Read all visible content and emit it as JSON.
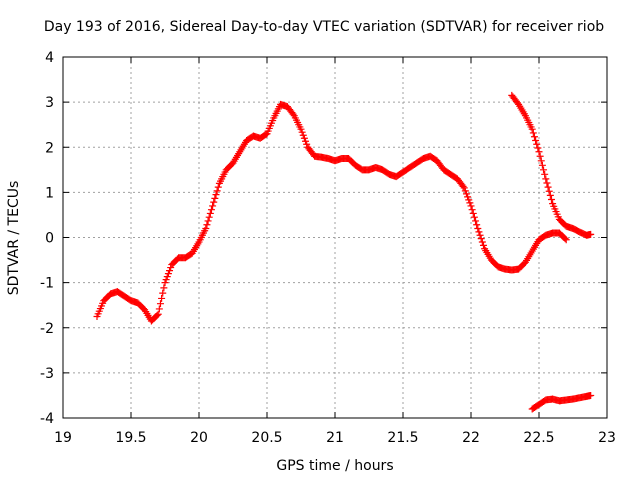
{
  "chart_data": {
    "type": "scatter",
    "title": "Day 193 of 2016, Sidereal Day-to-day VTEC variation (SDTVAR) for receiver riob",
    "xlabel": "GPS time / hours",
    "ylabel": "SDTVAR / TECUs",
    "xlim": [
      19,
      23
    ],
    "ylim": [
      -4,
      4
    ],
    "grid": true,
    "legend": "none",
    "marker": "plus",
    "color": "#ff0000",
    "x_ticks": [
      19,
      19.5,
      20,
      20.5,
      21,
      21.5,
      22,
      22.5,
      23
    ],
    "x_tick_labels": [
      "19",
      "19.5",
      "20",
      "20.5",
      "21",
      "21.5",
      "22",
      "22.5",
      "23"
    ],
    "y_ticks": [
      -4,
      -3,
      -2,
      -1,
      0,
      1,
      2,
      3,
      4
    ],
    "y_tick_labels": [
      "-4",
      "-3",
      "-2",
      "-1",
      "0",
      "1",
      "2",
      "3",
      "4"
    ],
    "series": [
      {
        "name": "main-arc",
        "x": [
          19.25,
          19.3,
          19.35,
          19.4,
          19.45,
          19.5,
          19.55,
          19.6,
          19.65,
          19.7,
          19.75,
          19.8,
          19.85,
          19.9,
          19.95,
          20.0,
          20.05,
          20.1,
          20.15,
          20.2,
          20.25,
          20.3,
          20.35,
          20.4,
          20.45,
          20.5,
          20.55,
          20.6,
          20.65,
          20.7,
          20.75,
          20.8,
          20.85,
          20.9,
          20.95,
          21.0,
          21.05,
          21.1,
          21.15,
          21.2,
          21.25,
          21.3,
          21.35,
          21.4,
          21.45,
          21.5,
          21.55,
          21.6,
          21.65,
          21.7,
          21.75,
          21.8,
          21.85,
          21.9,
          21.95,
          22.0,
          22.05,
          22.1,
          22.15,
          22.2,
          22.25,
          22.3,
          22.35,
          22.4,
          22.45,
          22.5,
          22.55,
          22.6,
          22.65,
          22.7
        ],
        "y": [
          -1.75,
          -1.4,
          -1.25,
          -1.2,
          -1.3,
          -1.4,
          -1.45,
          -1.6,
          -1.85,
          -1.7,
          -1.0,
          -0.6,
          -0.45,
          -0.45,
          -0.35,
          -0.1,
          0.2,
          0.7,
          1.2,
          1.5,
          1.65,
          1.9,
          2.15,
          2.25,
          2.2,
          2.3,
          2.65,
          2.95,
          2.9,
          2.7,
          2.4,
          2.0,
          1.8,
          1.78,
          1.75,
          1.7,
          1.75,
          1.75,
          1.6,
          1.5,
          1.5,
          1.55,
          1.5,
          1.4,
          1.35,
          1.45,
          1.55,
          1.65,
          1.75,
          1.8,
          1.7,
          1.5,
          1.4,
          1.3,
          1.1,
          0.7,
          0.2,
          -0.25,
          -0.5,
          -0.65,
          -0.7,
          -0.72,
          -0.7,
          -0.55,
          -0.3,
          -0.05,
          0.05,
          0.1,
          0.1,
          -0.05
        ]
      },
      {
        "name": "descending-arc",
        "x": [
          22.3,
          22.35,
          22.4,
          22.45,
          22.5,
          22.55,
          22.6,
          22.65,
          22.7,
          22.75,
          22.8,
          22.85,
          22.88
        ],
        "y": [
          3.15,
          2.95,
          2.7,
          2.4,
          1.9,
          1.3,
          0.75,
          0.4,
          0.25,
          0.2,
          0.12,
          0.05,
          0.07
        ]
      },
      {
        "name": "low-arc",
        "x": [
          22.45,
          22.5,
          22.55,
          22.6,
          22.65,
          22.7,
          22.75,
          22.8,
          22.85,
          22.88
        ],
        "y": [
          -3.8,
          -3.7,
          -3.6,
          -3.58,
          -3.62,
          -3.6,
          -3.58,
          -3.55,
          -3.52,
          -3.5
        ]
      }
    ]
  }
}
